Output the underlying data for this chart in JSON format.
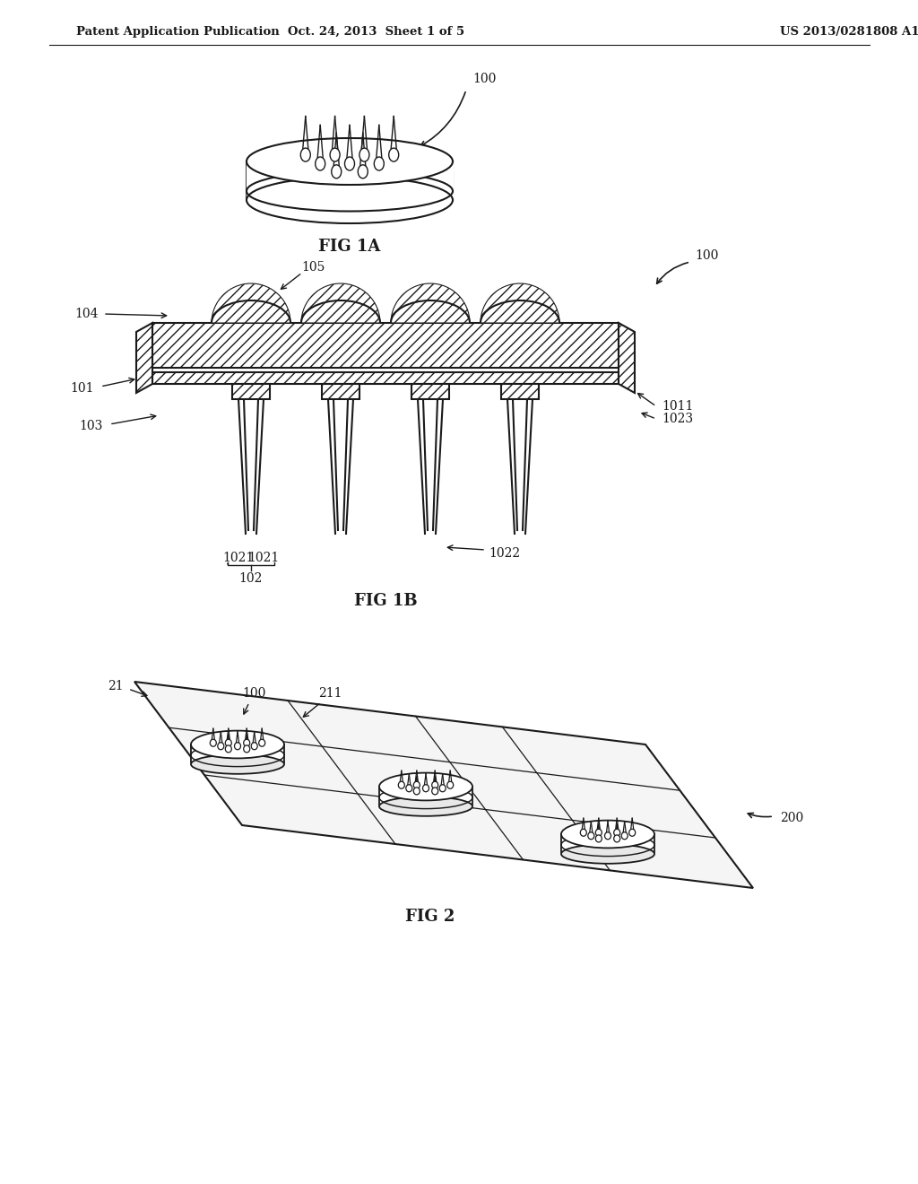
{
  "bg_color": "#ffffff",
  "line_color": "#1a1a1a",
  "header_left": "Patent Application Publication",
  "header_mid": "Oct. 24, 2013  Sheet 1 of 5",
  "header_right": "US 2013/0281808 A1",
  "fig1a_label": "FIG 1A",
  "fig1b_label": "FIG 1B",
  "fig2_label": "FIG 2",
  "label_100_1a": "100",
  "label_100_1b": "100",
  "label_101": "101",
  "label_102": "102",
  "label_103": "103",
  "label_104": "104",
  "label_105": "105",
  "label_1011": "1011",
  "label_1021": "1021",
  "label_1021b": "1021",
  "label_1022": "1022",
  "label_1023": "1023",
  "label_100_fig2": "100",
  "label_200": "200",
  "label_21": "21",
  "label_211": "211"
}
